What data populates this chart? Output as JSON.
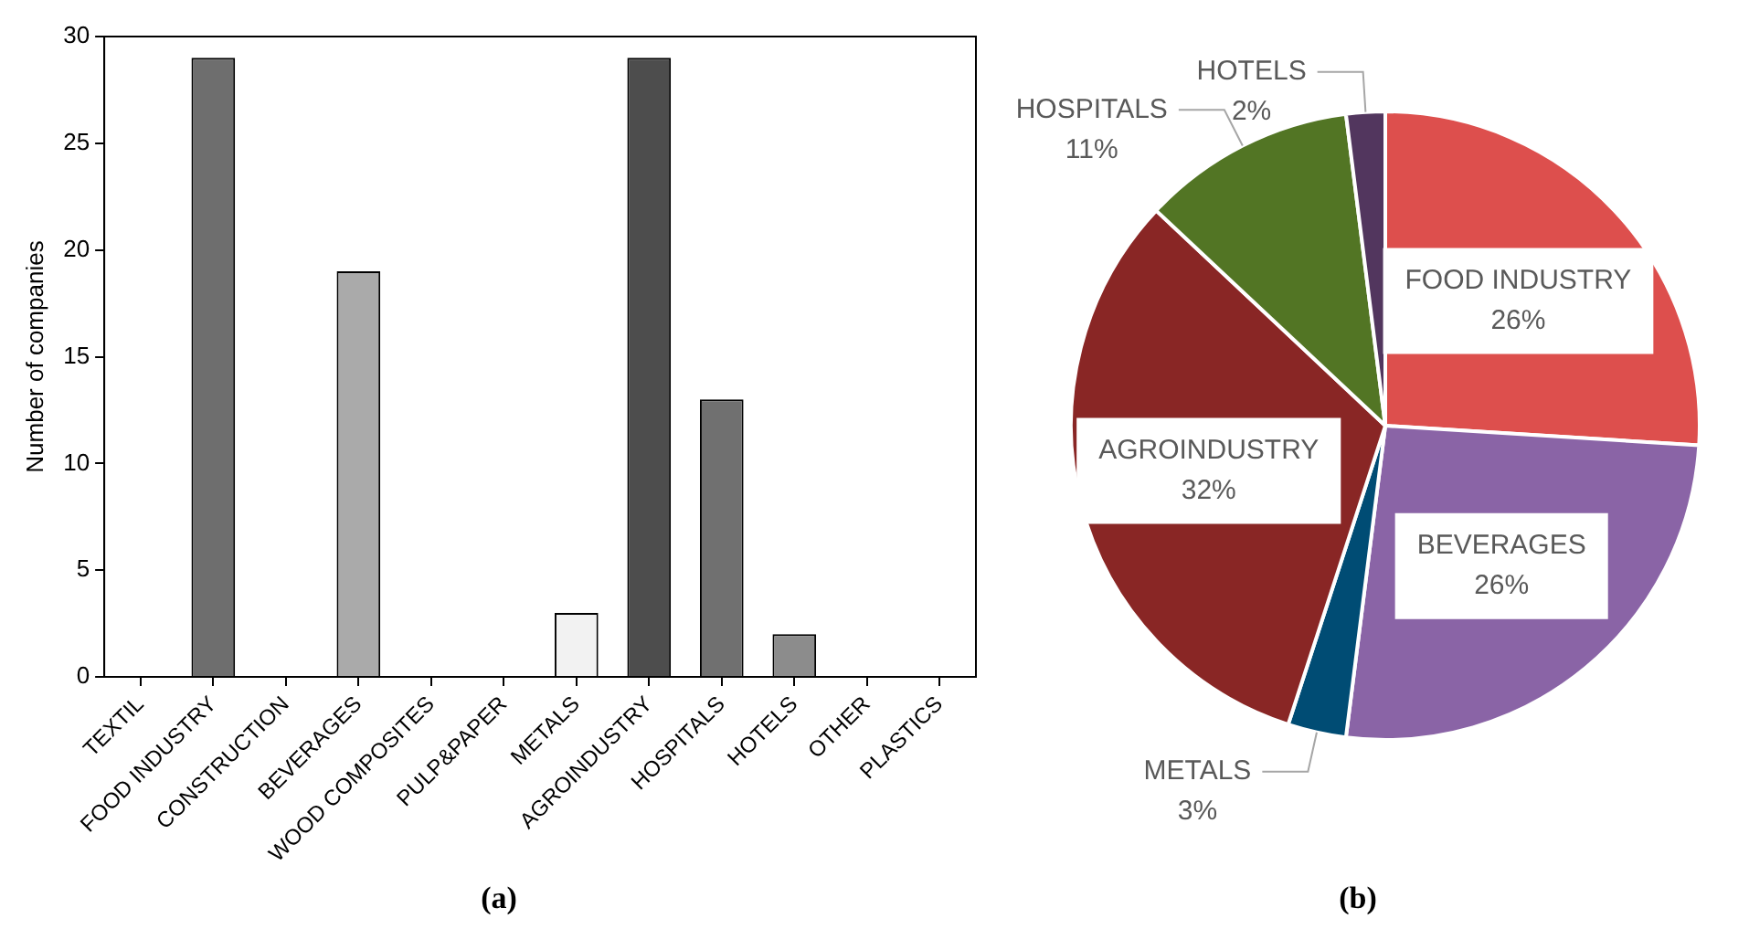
{
  "chart_data": [
    {
      "type": "bar",
      "ylabel": "Number of companies",
      "categories": [
        "TEXTIL",
        "FOOD INDUSTRY",
        "CONSTRUCTION",
        "BEVERAGES",
        "WOOD COMPOSITES",
        "PULP&PAPER",
        "METALS",
        "AGROINDUSTRY",
        "HOSPITALS",
        "HOTELS",
        "OTHER",
        "PLASTICS"
      ],
      "values": [
        0,
        29,
        0,
        19,
        0,
        0,
        3,
        29,
        13,
        2,
        0,
        0
      ],
      "colors": [
        "#808080",
        "#6e6e6e",
        "#808080",
        "#aaaaaa",
        "#808080",
        "#808080",
        "#f2f2f2",
        "#4d4d4d",
        "#707070",
        "#8c8c8c",
        "#808080",
        "#808080"
      ],
      "ylim": [
        0,
        30
      ],
      "yticks": [
        0,
        5,
        10,
        15,
        20,
        25,
        30
      ],
      "grid": false,
      "legend": false,
      "annotations": [
        "(a)"
      ]
    },
    {
      "type": "pie",
      "categories": [
        "FOOD INDUSTRY",
        "BEVERAGES",
        "METALS",
        "AGROINDUSTRY",
        "HOSPITALS",
        "HOTELS"
      ],
      "values": [
        26,
        26,
        3,
        32,
        11,
        2
      ],
      "value_labels": [
        "26%",
        "26%",
        "3%",
        "32%",
        "11%",
        "2%"
      ],
      "colors": [
        "#dd4f4d",
        "#8a64a6",
        "#004c74",
        "#892625",
        "#527524",
        "#52365e"
      ],
      "legend": false,
      "annotations": [
        "(b)"
      ]
    }
  ]
}
